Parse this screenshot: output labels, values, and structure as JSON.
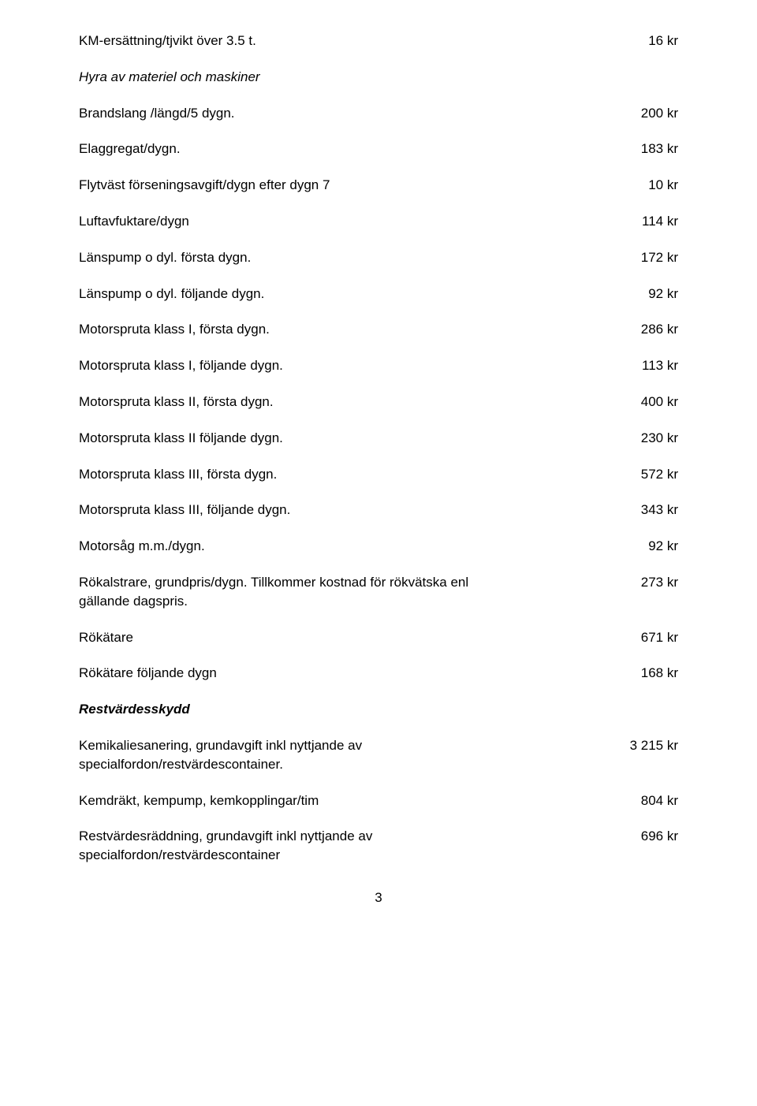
{
  "rows": {
    "r1": {
      "label": "KM-ersättning/tjvikt över 3.5 t.",
      "value": "16 kr"
    },
    "r2": {
      "label": "Brandslang /längd/5 dygn.",
      "value": "200 kr"
    },
    "r3": {
      "label": "Elaggregat/dygn.",
      "value": "183 kr"
    },
    "r4": {
      "label": "Flytväst förseningsavgift/dygn efter dygn 7",
      "value": "10 kr"
    },
    "r5": {
      "label": "Luftavfuktare/dygn",
      "value": "114 kr"
    },
    "r6": {
      "label": "Länspump o dyl. första dygn.",
      "value": "172 kr"
    },
    "r7": {
      "label": "Länspump o dyl. följande dygn.",
      "value": "92 kr"
    },
    "r8": {
      "label": "Motorspruta klass I, första dygn.",
      "value": "286 kr"
    },
    "r9": {
      "label": "Motorspruta klass I, följande dygn.",
      "value": "113 kr"
    },
    "r10": {
      "label": "Motorspruta klass II, första dygn.",
      "value": "400 kr"
    },
    "r11": {
      "label": "Motorspruta klass II följande dygn.",
      "value": "230 kr"
    },
    "r12": {
      "label": "Motorspruta klass III, första dygn.",
      "value": "572 kr"
    },
    "r13": {
      "label": "Motorspruta klass III, följande dygn.",
      "value": "343 kr"
    },
    "r14": {
      "label": "Motorsåg m.m./dygn.",
      "value": "92 kr"
    },
    "r15": {
      "label": "Rökalstrare, grundpris/dygn. Tillkommer kostnad för rökvätska enl gällande dagspris.",
      "value": "273 kr"
    },
    "r16": {
      "label": "Rökätare",
      "value": "671 kr"
    },
    "r17": {
      "label": "Rökätare följande dygn",
      "value": "168 kr"
    },
    "r18": {
      "label": "Kemikaliesanering, grundavgift inkl nyttjande av specialfordon/restvärdescontainer.",
      "value": "3 215 kr"
    },
    "r19": {
      "label": "Kemdräkt, kempump, kemkopplingar/tim",
      "value": "804 kr"
    },
    "r20": {
      "label": "Restvärdesräddning, grundavgift inkl nyttjande av specialfordon/restvärdescontainer",
      "value": "696 kr"
    }
  },
  "headings": {
    "h1": "Hyra av materiel och maskiner",
    "h2": "Restvärdesskydd"
  },
  "page_number": "3"
}
